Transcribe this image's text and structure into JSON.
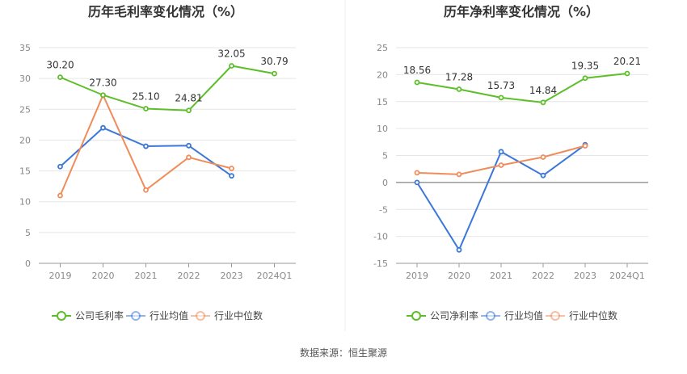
{
  "footer": {
    "source": "数据来源：恒生聚源"
  },
  "colors": {
    "company": "#5cbf2a",
    "industry_avg": "#3b78d8",
    "industry_median": "#f08c5a"
  },
  "chart_data": [
    {
      "type": "line",
      "title": "历年毛利率变化情况（%）",
      "categories": [
        "2019",
        "2020",
        "2021",
        "2022",
        "2023",
        "2024Q1"
      ],
      "ylim": [
        0,
        35
      ],
      "yticks": [
        0,
        5,
        10,
        15,
        20,
        25,
        30,
        35
      ],
      "grid": true,
      "legend_position": "bottom",
      "series": [
        {
          "name": "公司毛利率",
          "values": [
            30.2,
            27.3,
            25.1,
            24.81,
            32.05,
            30.79
          ],
          "labels": [
            "30.20",
            "27.30",
            "25.10",
            "24.81",
            "32.05",
            "30.79"
          ]
        },
        {
          "name": "行业均值",
          "values": [
            15.7,
            22.0,
            19.0,
            19.1,
            14.2,
            null
          ]
        },
        {
          "name": "行业中位数",
          "values": [
            11.0,
            27.3,
            11.9,
            17.2,
            15.4,
            null
          ]
        }
      ]
    },
    {
      "type": "line",
      "title": "历年净利率变化情况（%）",
      "categories": [
        "2019",
        "2020",
        "2021",
        "2022",
        "2023",
        "2024Q1"
      ],
      "ylim": [
        -15,
        25
      ],
      "yticks": [
        -15,
        -10,
        -5,
        0,
        5,
        10,
        15,
        20,
        25
      ],
      "grid": true,
      "legend_position": "bottom",
      "series": [
        {
          "name": "公司净利率",
          "values": [
            18.56,
            17.28,
            15.73,
            14.84,
            19.35,
            20.21
          ],
          "labels": [
            "18.56",
            "17.28",
            "15.73",
            "14.84",
            "19.35",
            "20.21"
          ]
        },
        {
          "name": "行业均值",
          "values": [
            0.0,
            -12.5,
            5.7,
            1.3,
            7.0,
            null
          ]
        },
        {
          "name": "行业中位数",
          "values": [
            1.8,
            1.5,
            3.2,
            4.7,
            6.8,
            null
          ]
        }
      ]
    }
  ]
}
